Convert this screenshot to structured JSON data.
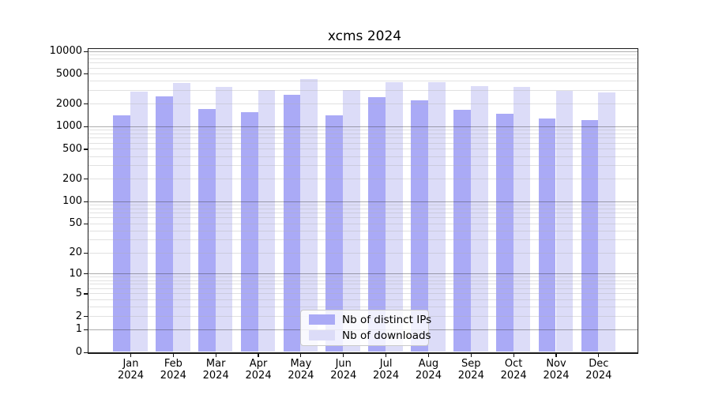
{
  "chart_data": {
    "type": "bar",
    "title": "xcms 2024",
    "categories": [
      "Jan",
      "Feb",
      "Mar",
      "Apr",
      "May",
      "Jun",
      "Jul",
      "Aug",
      "Sep",
      "Oct",
      "Nov",
      "Dec"
    ],
    "category_year": "2024",
    "series": [
      {
        "name": "Nb of distinct IPs",
        "color": "#aaaaf6",
        "values": [
          1400,
          2500,
          1700,
          1550,
          2600,
          1400,
          2450,
          2200,
          1650,
          1450,
          1250,
          1200
        ]
      },
      {
        "name": "Nb of downloads",
        "color": "#dcdcf8",
        "values": [
          2850,
          3800,
          3350,
          3000,
          4200,
          3000,
          3850,
          3850,
          3450,
          3300,
          2950,
          2800
        ]
      }
    ],
    "y_axis": {
      "scale": "log10(value+1)",
      "ticks": [
        10000,
        5000,
        2000,
        1000,
        500,
        200,
        100,
        50,
        20,
        10,
        5,
        2,
        1,
        0
      ],
      "range": [
        0,
        10000
      ],
      "grid": "on"
    },
    "x_axis": {
      "tick_label_format": "month over year, two lines"
    },
    "legend": {
      "position": "bottom-center-inside"
    },
    "colors": {
      "background": "#ffffff",
      "axis": "#1a1a1a",
      "grid_major": "#b4b4b4",
      "grid_minor": "#e5e5e5",
      "text": "#000000"
    }
  }
}
